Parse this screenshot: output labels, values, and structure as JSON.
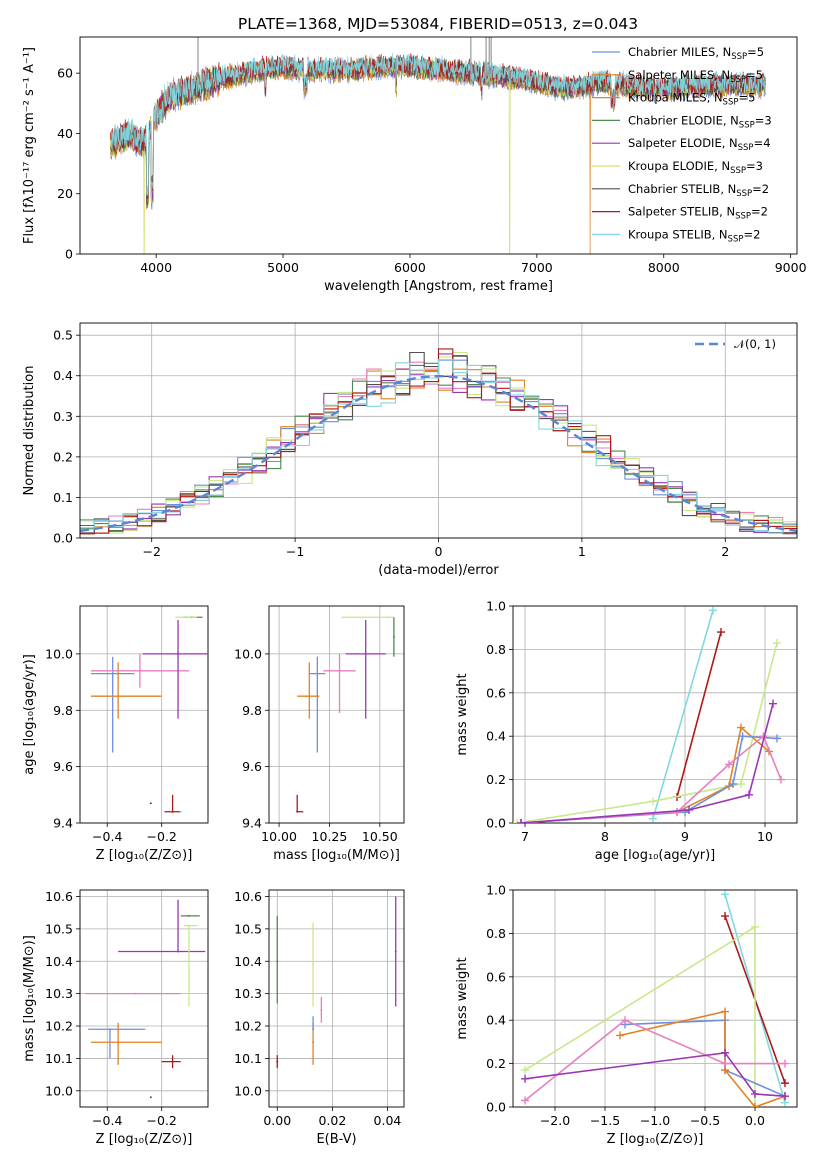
{
  "figure_title": "PLATE=1368, MJD=53084, FIBERID=0513, z=0.043",
  "colors": {
    "Chabrier MILES": "#6f8fdd",
    "Salpeter MILES": "#e08326",
    "Kroupa MILES": "#d08a2e",
    "Chabrier ELODIE": "#4f8a4f",
    "Salpeter ELODIE": "#9a36b3",
    "Kroupa ELODIE": "#d6e06a",
    "Chabrier STELIB": "#505050",
    "Salpeter STELIB": "#b01818",
    "Kroupa STELIB": "#80d8e0",
    "pink": "#e77fc1",
    "lime": "#c8e88a",
    "gaussian": "#5b86d8"
  },
  "chart_data": [
    {
      "id": "spectrum",
      "type": "line",
      "title": "PLATE=1368, MJD=53084, FIBERID=0513, z=0.043",
      "xlabel": "wavelength [Angstrom, rest frame]",
      "ylabel": "Flux [fλ10⁻¹⁷ erg cm⁻² s⁻¹ A⁻¹]",
      "xlim": [
        3400,
        9050
      ],
      "ylim": [
        0,
        72
      ],
      "xticks": [
        4000,
        5000,
        6000,
        7000,
        8000,
        9000
      ],
      "yticks": [
        0,
        20,
        40,
        60
      ],
      "grid": false,
      "legend_position": "upper right",
      "legend": [
        {
          "label": "Chabrier MILES, N",
          "sub": "SSP",
          "tail": "=5"
        },
        {
          "label": "Salpeter MILES, N",
          "sub": "SSP",
          "tail": "=5"
        },
        {
          "label": "Kroupa MILES, N",
          "sub": "SSP",
          "tail": "=5"
        },
        {
          "label": "Chabrier ELODIE, N",
          "sub": "SSP",
          "tail": "=3"
        },
        {
          "label": "Salpeter ELODIE, N",
          "sub": "SSP",
          "tail": "=4"
        },
        {
          "label": "Kroupa ELODIE, N",
          "sub": "SSP",
          "tail": "=3"
        },
        {
          "label": "Chabrier STELIB, N",
          "sub": "SSP",
          "tail": "=2"
        },
        {
          "label": "Salpeter STELIB, N",
          "sub": "SSP",
          "tail": "=2"
        },
        {
          "label": "Kroupa STELIB, N",
          "sub": "SSP",
          "tail": "=2"
        }
      ],
      "continuum_wavelength": [
        3640,
        3700,
        3800,
        3900,
        4000,
        4100,
        4300,
        4500,
        4800,
        5000,
        5200,
        5500,
        5800,
        6000,
        6300,
        6500,
        6700,
        6900,
        7100,
        7200,
        7300,
        7500,
        7700,
        7900,
        8100,
        8300,
        8500,
        8700,
        8800
      ],
      "continuum_flux": [
        36,
        38,
        40,
        36,
        46,
        52,
        55,
        58,
        61,
        62,
        61,
        61,
        62,
        62,
        61,
        60,
        59,
        58,
        56,
        55,
        55,
        57,
        56,
        55,
        55,
        56,
        56,
        56,
        56
      ],
      "drops": [
        {
          "series": "Kroupa ELODIE",
          "wavelength": 3905
        },
        {
          "series": "Kroupa ELODIE",
          "wavelength": 6785
        },
        {
          "series": "Salpeter MILES",
          "wavelength": 7420
        }
      ]
    },
    {
      "id": "residuals",
      "type": "line",
      "xlabel": "(data-model)/error",
      "ylabel": "Normed distribution",
      "xlim": [
        -2.5,
        2.5
      ],
      "ylim": [
        0,
        0.53
      ],
      "xticks": [
        -2,
        -1,
        0,
        1,
        2
      ],
      "yticks": [
        0.0,
        0.1,
        0.2,
        0.3,
        0.4,
        0.5
      ],
      "grid": true,
      "legend_position": "upper right",
      "gaussian_label": "𝒩(0, 1)",
      "bin_width": 0.1,
      "n_bins": 50
    },
    {
      "id": "age_vs_Z",
      "type": "scatter",
      "xlabel": "Z [log₁₀(Z/Z⊙)]",
      "ylabel": "age  [log₁₀(age/yr)]",
      "xlim": [
        -0.5,
        -0.03
      ],
      "ylim": [
        9.4,
        10.17
      ],
      "xticks": [
        -0.4,
        -0.2
      ],
      "yticks": [
        9.4,
        9.6,
        9.8,
        10.0
      ],
      "grid": true,
      "points": [
        {
          "series": "Chabrier MILES",
          "x": -0.38,
          "y": 9.93,
          "xerr": [
            0.08,
            0.08
          ],
          "yerr": [
            0.28,
            0.06
          ]
        },
        {
          "series": "Salpeter MILES",
          "x": -0.36,
          "y": 9.85,
          "xerr": [
            0.1,
            0.16
          ],
          "yerr": [
            0.08,
            0.12
          ]
        },
        {
          "series": "pink",
          "x": -0.28,
          "y": 9.94,
          "xerr": [
            0.18,
            0.18
          ],
          "yerr": [
            0.06,
            0.06
          ]
        },
        {
          "series": "Chabrier ELODIE",
          "x": -0.09,
          "y": 10.13,
          "xerr": [
            0.03,
            0.04
          ],
          "yerr": [
            0.0,
            0.0
          ]
        },
        {
          "series": "Salpeter ELODIE",
          "x": -0.14,
          "y": 10.0,
          "xerr": [
            0.13,
            0.11
          ],
          "yerr": [
            0.23,
            0.12
          ]
        },
        {
          "series": "lime",
          "x": -0.1,
          "y": 10.13,
          "xerr": [
            0.05,
            0.03
          ],
          "yerr": [
            0.0,
            0.0
          ]
        },
        {
          "series": "Chabrier STELIB",
          "x": -0.24,
          "y": 9.47,
          "xerr": [
            0.0,
            0.0
          ],
          "yerr": [
            0.0,
            0.0
          ]
        },
        {
          "series": "Salpeter STELIB",
          "x": -0.16,
          "y": 9.44,
          "xerr": [
            0.03,
            0.03
          ],
          "yerr": [
            0.0,
            0.06
          ]
        },
        {
          "series": "Kroupa STELIB",
          "x": -0.13,
          "y": 9.44,
          "xerr": [
            0.0,
            0.0
          ],
          "yerr": [
            0.0,
            0.0
          ]
        }
      ]
    },
    {
      "id": "age_vs_mass",
      "type": "scatter",
      "xlabel": "mass [log₁₀(M/M⊙)]",
      "ylabel": "",
      "xlim": [
        9.95,
        10.62
      ],
      "ylim": [
        9.4,
        10.17
      ],
      "xticks": [
        10.0,
        10.25,
        10.5
      ],
      "tick_labels": [
        "10.00",
        "10.25",
        "10.50"
      ],
      "yticks": [
        9.4,
        9.6,
        9.8,
        10.0
      ],
      "grid": true,
      "points": [
        {
          "series": "Chabrier MILES",
          "x": 10.19,
          "y": 9.93,
          "xerr": [
            0.04,
            0.04
          ],
          "yerr": [
            0.28,
            0.06
          ]
        },
        {
          "series": "Salpeter MILES",
          "x": 10.15,
          "y": 9.85,
          "xerr": [
            0.06,
            0.05
          ],
          "yerr": [
            0.08,
            0.12
          ]
        },
        {
          "series": "pink",
          "x": 10.3,
          "y": 9.94,
          "xerr": [
            0.08,
            0.08
          ],
          "yerr": [
            0.15,
            0.06
          ]
        },
        {
          "series": "Salpeter ELODIE",
          "x": 10.43,
          "y": 10.0,
          "xerr": [
            0.1,
            0.1
          ],
          "yerr": [
            0.23,
            0.12
          ]
        },
        {
          "series": "lime",
          "x": 10.54,
          "y": 10.13,
          "xerr": [
            0.23,
            0.03
          ],
          "yerr": [
            0.0,
            0.0
          ]
        },
        {
          "series": "Chabrier ELODIE",
          "x": 10.57,
          "y": 10.06,
          "xerr": [
            0.0,
            0.0
          ],
          "yerr": [
            0.07,
            0.07
          ]
        },
        {
          "series": "Salpeter STELIB",
          "x": 10.09,
          "y": 9.44,
          "xerr": [
            0.0,
            0.03
          ],
          "yerr": [
            0.0,
            0.06
          ]
        }
      ]
    },
    {
      "id": "weight_vs_age",
      "type": "line",
      "xlabel": "age  [log₁₀(age/yr)]",
      "ylabel": "mass weight",
      "xlim": [
        6.85,
        10.4
      ],
      "ylim": [
        0,
        1.0
      ],
      "xticks": [
        7,
        8,
        9,
        10
      ],
      "yticks": [
        0.0,
        0.2,
        0.4,
        0.6,
        0.8,
        1.0
      ],
      "grid": true,
      "series": [
        {
          "series": "Kroupa STELIB",
          "x": [
            8.6,
            9.35
          ],
          "y": [
            0.02,
            0.98
          ]
        },
        {
          "series": "Salpeter STELIB",
          "x": [
            8.9,
            9.45
          ],
          "y": [
            0.12,
            0.88
          ]
        },
        {
          "series": "lime",
          "x": [
            6.9,
            8.6,
            9.7,
            10.15
          ],
          "y": [
            0.0,
            0.1,
            0.18,
            0.83
          ]
        },
        {
          "series": "Salpeter MILES",
          "x": [
            6.95,
            8.9,
            9.55,
            9.7,
            10.05
          ],
          "y": [
            0.0,
            0.05,
            0.17,
            0.44,
            0.33
          ]
        },
        {
          "series": "Chabrier MILES",
          "x": [
            6.95,
            9.0,
            9.6,
            9.72,
            10.15
          ],
          "y": [
            0.0,
            0.05,
            0.18,
            0.4,
            0.39
          ]
        },
        {
          "series": "pink",
          "x": [
            6.95,
            8.9,
            9.55,
            9.98,
            10.2
          ],
          "y": [
            0.0,
            0.05,
            0.27,
            0.4,
            0.2
          ]
        },
        {
          "series": "Salpeter ELODIE",
          "x": [
            6.95,
            9.05,
            9.8,
            10.1
          ],
          "y": [
            0.0,
            0.06,
            0.13,
            0.55
          ]
        }
      ]
    },
    {
      "id": "mass_vs_Z",
      "type": "scatter",
      "xlabel": "Z [log₁₀(Z/Z⊙)]",
      "ylabel": "mass [log₁₀(M/M⊙)]",
      "xlim": [
        -0.5,
        -0.03
      ],
      "ylim": [
        9.95,
        10.62
      ],
      "xticks": [
        -0.4,
        -0.2
      ],
      "yticks": [
        10.0,
        10.1,
        10.2,
        10.3,
        10.4,
        10.5,
        10.6
      ],
      "grid": true,
      "points": [
        {
          "series": "Chabrier MILES",
          "x": -0.39,
          "y": 10.19,
          "xerr": [
            0.08,
            0.13
          ],
          "yerr": [
            0.09,
            0.0
          ]
        },
        {
          "series": "Salpeter MILES",
          "x": -0.36,
          "y": 10.15,
          "xerr": [
            0.1,
            0.16
          ],
          "yerr": [
            0.07,
            0.06
          ]
        },
        {
          "series": "pink",
          "x": -0.3,
          "y": 10.3,
          "xerr": [
            0.18,
            0.17
          ],
          "yerr": [
            0.0,
            0.0
          ]
        },
        {
          "series": "Salpeter ELODIE",
          "x": -0.14,
          "y": 10.43,
          "xerr": [
            0.22,
            0.1
          ],
          "yerr": [
            0.0,
            0.16
          ]
        },
        {
          "series": "lime",
          "x": -0.1,
          "y": 10.51,
          "xerr": [
            0.02,
            0.03
          ],
          "yerr": [
            0.25,
            0.0
          ]
        },
        {
          "series": "Chabrier ELODIE",
          "x": -0.1,
          "y": 10.54,
          "xerr": [
            0.03,
            0.04
          ],
          "yerr": [
            0.0,
            0.0
          ]
        },
        {
          "series": "Salpeter STELIB",
          "x": -0.16,
          "y": 10.09,
          "xerr": [
            0.04,
            0.03
          ],
          "yerr": [
            0.02,
            0.02
          ]
        },
        {
          "series": "Chabrier STELIB",
          "x": -0.24,
          "y": 9.98,
          "xerr": [
            0.0,
            0.0
          ],
          "yerr": [
            0.0,
            0.0
          ]
        }
      ]
    },
    {
      "id": "mass_vs_EBV",
      "type": "scatter",
      "xlabel": "E(B-V)",
      "ylabel": "",
      "xlim": [
        -0.003,
        0.046
      ],
      "ylim": [
        9.95,
        10.62
      ],
      "xticks": [
        0.0,
        0.02,
        0.04
      ],
      "tick_labels": [
        "0.00",
        "0.02",
        "0.04"
      ],
      "yticks": [
        10.0,
        10.1,
        10.2,
        10.3,
        10.4,
        10.5,
        10.6
      ],
      "grid": true,
      "points": [
        {
          "series": "Salpeter STELIB",
          "x": 0.0,
          "y": 10.09,
          "xerr": [
            0,
            0
          ],
          "yerr": [
            0.02,
            0.02
          ]
        },
        {
          "series": "Chabrier ELODIE",
          "x": 0.0,
          "y": 10.4,
          "xerr": [
            0,
            0
          ],
          "yerr": [
            0.13,
            0.14
          ]
        },
        {
          "series": "Salpeter MILES",
          "x": 0.013,
          "y": 10.15,
          "xerr": [
            0,
            0
          ],
          "yerr": [
            0.07,
            0.06
          ]
        },
        {
          "series": "Chabrier MILES",
          "x": 0.013,
          "y": 10.19,
          "xerr": [
            0,
            0
          ],
          "yerr": [
            0.0,
            0.04
          ]
        },
        {
          "series": "lime",
          "x": 0.013,
          "y": 10.39,
          "xerr": [
            0,
            0
          ],
          "yerr": [
            0.13,
            0.13
          ]
        },
        {
          "series": "pink",
          "x": 0.016,
          "y": 10.25,
          "xerr": [
            0,
            0
          ],
          "yerr": [
            0.04,
            0.04
          ]
        },
        {
          "series": "Salpeter ELODIE",
          "x": 0.043,
          "y": 10.43,
          "xerr": [
            0,
            0
          ],
          "yerr": [
            0.17,
            0.17
          ]
        }
      ]
    },
    {
      "id": "weight_vs_Z",
      "type": "line",
      "xlabel": "Z [log₁₀(Z/Z⊙)]",
      "ylabel": "mass weight",
      "xlim": [
        -2.42,
        0.42
      ],
      "ylim": [
        0,
        1.0
      ],
      "xticks": [
        -2.0,
        -1.5,
        -1.0,
        -0.5,
        0.0
      ],
      "tick_labels": [
        "−2.0",
        "−1.5",
        "−1.0",
        "−0.5",
        "0.0"
      ],
      "yticks": [
        0.0,
        0.2,
        0.4,
        0.6,
        0.8,
        1.0
      ],
      "grid": true,
      "series": [
        {
          "series": "Kroupa STELIB",
          "x": [
            -0.3,
            0.3
          ],
          "y": [
            0.98,
            0.02
          ]
        },
        {
          "series": "Salpeter STELIB",
          "x": [
            -0.3,
            0.3
          ],
          "y": [
            0.88,
            0.11
          ]
        },
        {
          "series": "lime",
          "x": [
            -2.3,
            0.0,
            0.0
          ],
          "y": [
            0.17,
            0.83,
            0.0
          ]
        },
        {
          "series": "Chabrier MILES",
          "x": [
            -1.3,
            -0.3,
            -0.3,
            0.3
          ],
          "y": [
            0.38,
            0.4,
            0.17,
            0.05
          ]
        },
        {
          "series": "Salpeter MILES",
          "x": [
            -1.35,
            -0.3,
            -0.3,
            0.0,
            0.3
          ],
          "y": [
            0.33,
            0.44,
            0.17,
            0.0,
            0.05
          ]
        },
        {
          "series": "pink",
          "x": [
            -2.3,
            -1.3,
            -0.3,
            0.3
          ],
          "y": [
            0.03,
            0.4,
            0.2,
            0.2
          ]
        },
        {
          "series": "Salpeter ELODIE",
          "x": [
            -2.3,
            -0.3,
            0.0,
            0.3
          ],
          "y": [
            0.13,
            0.25,
            0.06,
            0.05
          ]
        }
      ]
    }
  ]
}
